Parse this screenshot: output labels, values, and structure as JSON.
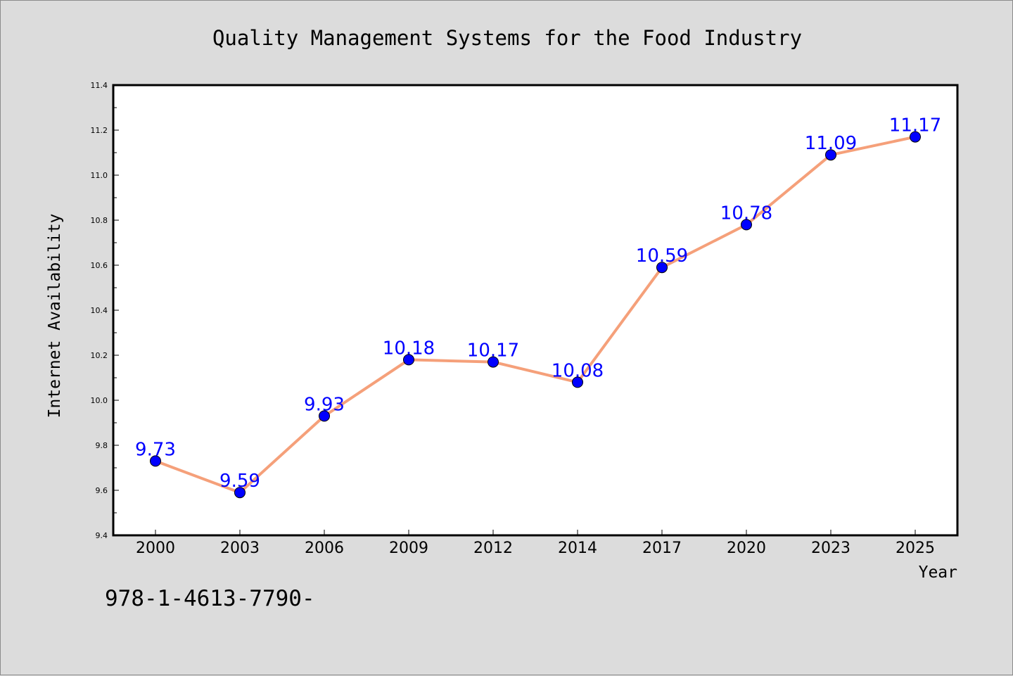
{
  "footer_text": "978-1-4613-7790-",
  "chart_data": {
    "type": "line",
    "title": "Quality Management Systems for the Food Industry",
    "xlabel": "Year",
    "ylabel": "Internet Availability",
    "categories": [
      "2000",
      "2003",
      "2006",
      "2009",
      "2012",
      "2014",
      "2017",
      "2020",
      "2023",
      "2025"
    ],
    "values": [
      9.73,
      9.59,
      9.93,
      10.18,
      10.17,
      10.08,
      10.59,
      10.78,
      11.09,
      11.17
    ],
    "data_labels": [
      "9.73",
      "9.59",
      "9.93",
      "10.18",
      "10.17",
      "10.08",
      "10.59",
      "10.78",
      "11.09",
      "11.17"
    ],
    "ylim": [
      9.4,
      11.4
    ],
    "yticks": [
      "9.4",
      "9.6",
      "9.8",
      "10.0",
      "10.2",
      "10.4",
      "10.6",
      "10.8",
      "11.0",
      "11.2",
      "11.4"
    ],
    "grid": false,
    "colors": {
      "line": "#f5a07a",
      "marker": "#0000ff",
      "data_label": "#0000ff",
      "background": "#dcdcdc",
      "plot_background": "#ffffff"
    }
  }
}
